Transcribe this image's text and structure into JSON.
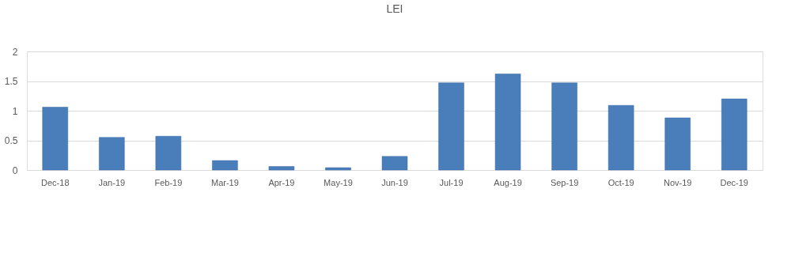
{
  "chart_data": {
    "type": "bar",
    "title": "LEI",
    "categories": [
      "Dec-18",
      "Jan-19",
      "Feb-19",
      "Mar-19",
      "Apr-19",
      "May-19",
      "Jun-19",
      "Jul-19",
      "Aug-19",
      "Sep-19",
      "Oct-19",
      "Nov-19",
      "Dec-19"
    ],
    "values": [
      1.06,
      0.55,
      0.57,
      0.16,
      0.06,
      0.04,
      0.23,
      1.47,
      1.62,
      1.47,
      1.09,
      0.88,
      1.2
    ],
    "color": "#4a7ebb",
    "ylim": [
      0,
      2
    ],
    "yticks": [
      0,
      0.5,
      1,
      1.5,
      2
    ],
    "grid": "y"
  }
}
